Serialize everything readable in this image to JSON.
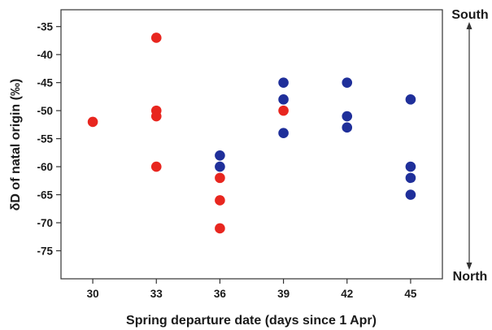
{
  "chart_data": {
    "type": "scatter",
    "xlabel": "Spring departure date (days since 1 Apr)",
    "ylabel": "δD of natal origin (‰)",
    "x_ticks": [
      30,
      33,
      36,
      39,
      42,
      45
    ],
    "y_ticks": [
      -35,
      -40,
      -45,
      -50,
      -55,
      -60,
      -65,
      -70,
      -75
    ],
    "xlim": [
      28.5,
      46.5
    ],
    "ylim": [
      -80,
      -32
    ],
    "grid": false,
    "annotations": {
      "top": "South",
      "bottom": "North"
    },
    "series": [
      {
        "color": "#e8261f",
        "points": [
          {
            "x": 30,
            "y": -52
          },
          {
            "x": 33,
            "y": -37
          },
          {
            "x": 33,
            "y": -50
          },
          {
            "x": 33,
            "y": -51
          },
          {
            "x": 33,
            "y": -60
          },
          {
            "x": 36,
            "y": -62
          },
          {
            "x": 36,
            "y": -66
          },
          {
            "x": 36,
            "y": -71
          },
          {
            "x": 39,
            "y": -50
          }
        ]
      },
      {
        "color": "#1f2f9a",
        "points": [
          {
            "x": 36,
            "y": -58
          },
          {
            "x": 36,
            "y": -60
          },
          {
            "x": 39,
            "y": -45
          },
          {
            "x": 39,
            "y": -48
          },
          {
            "x": 39,
            "y": -54
          },
          {
            "x": 42,
            "y": -45
          },
          {
            "x": 42,
            "y": -51
          },
          {
            "x": 42,
            "y": -53
          },
          {
            "x": 45,
            "y": -48
          },
          {
            "x": 45,
            "y": -60
          },
          {
            "x": 45,
            "y": -62
          },
          {
            "x": 45,
            "y": -65
          }
        ]
      }
    ]
  }
}
